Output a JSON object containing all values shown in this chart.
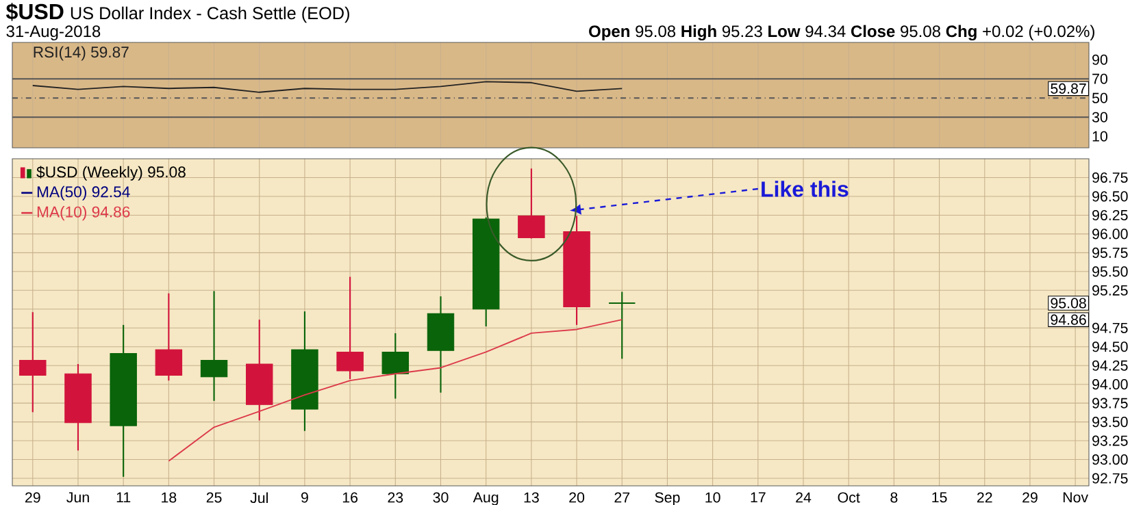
{
  "chart_data": [
    {
      "type": "line",
      "title": "$USD",
      "subtitle": "US Dollar Index - Cash Settle (EOD)",
      "annotations": [
        "31-Aug-2018",
        "**Open** 95.08 **High** 95.23 **Low** 94.34 **Close** 95.08 **Chg** +0.02 (+0.02%)",
        {
          "text": "59.87",
          "y": 59.87
        }
      ],
      "categories": [
        null,
        null,
        null,
        null,
        null,
        null,
        null,
        null,
        null,
        null,
        null,
        null,
        null,
        null,
        null,
        null,
        null,
        null,
        null,
        null,
        null,
        null,
        null,
        null
      ],
      "series": [
        {
          "name": "RSI(14) 59.87",
          "color": "#222222",
          "values": [
            63,
            59,
            62,
            60,
            61,
            56,
            60,
            59,
            59,
            62,
            67,
            66,
            57,
            59.87,
            null,
            null,
            null,
            null,
            null,
            null,
            null,
            null,
            null,
            null
          ]
        }
      ],
      "ylim": [
        -2,
        108
      ],
      "yticks": [
        10,
        30,
        50,
        70,
        90
      ],
      "tick_labels": "y",
      "grid": "x",
      "legend": "top left",
      "ref_lines": [
        {
          "axis": "y",
          "value": 70,
          "color": "#555555",
          "line_style": "solid"
        },
        {
          "axis": "y",
          "value": 50,
          "color": "#555555",
          "line_style": "dashed"
        },
        {
          "axis": "y",
          "value": 30,
          "color": "#555555",
          "line_style": "solid"
        }
      ]
    },
    {
      "type": "candlestick",
      "categories": [
        "29",
        "Jun",
        "11",
        "18",
        "25",
        "Jul",
        "9",
        "16",
        "23",
        "30",
        "Aug",
        "13",
        "20",
        "27",
        "Sep",
        "10",
        "17",
        "24",
        "Oct",
        "8",
        "15",
        "22",
        "29",
        "Nov"
      ],
      "series": [
        {
          "name": "$USD (Weekly) 95.08",
          "type": "candlestick",
          "ohlc": [
            [
              94.32,
              94.96,
              93.63,
              94.12
            ],
            [
              94.14,
              94.27,
              93.12,
              93.49
            ],
            [
              93.45,
              94.79,
              92.77,
              94.41
            ],
            [
              94.46,
              95.21,
              94.05,
              94.12
            ],
            [
              94.1,
              95.24,
              93.78,
              94.32
            ],
            [
              94.27,
              94.86,
              93.52,
              93.73
            ],
            [
              93.67,
              94.97,
              93.38,
              94.46
            ],
            [
              94.43,
              95.43,
              94.07,
              94.18
            ],
            [
              94.14,
              94.68,
              93.81,
              94.43
            ],
            [
              94.45,
              95.17,
              93.89,
              94.94
            ],
            [
              95.0,
              96.22,
              94.77,
              96.2
            ],
            [
              96.24,
              96.87,
              95.94,
              95.95
            ],
            [
              96.03,
              96.24,
              94.79,
              95.03
            ],
            [
              95.08,
              95.23,
              94.34,
              95.08
            ],
            null,
            null,
            null,
            null,
            null,
            null,
            null,
            null,
            null,
            null
          ],
          "colors": [
            "#d2143c",
            "#d2143c",
            "#0a640a",
            "#d2143c",
            "#0a640a",
            "#d2143c",
            "#0a640a",
            "#d2143c",
            "#0a640a",
            "#0a640a",
            "#0a640a",
            "#d2143c",
            "#d2143c",
            "#0a640a",
            null,
            null,
            null,
            null,
            null,
            null,
            null,
            null,
            null,
            null
          ]
        },
        {
          "name": "MA(50) 92.54",
          "type": "line",
          "color": "#00007f",
          "values": [
            null,
            null,
            null,
            null,
            null,
            null,
            null,
            null,
            null,
            null,
            null,
            null,
            null,
            null,
            null,
            null,
            null,
            null,
            null,
            null,
            null,
            null,
            null,
            null
          ]
        },
        {
          "name": "MA(10) 94.86",
          "type": "line",
          "color": "#dc3a4a",
          "values": [
            null,
            null,
            null,
            92.98,
            93.43,
            93.64,
            93.86,
            94.05,
            94.14,
            94.22,
            94.43,
            94.68,
            94.73,
            94.86,
            null,
            null,
            null,
            null,
            null,
            null,
            null,
            null,
            null,
            null
          ]
        }
      ],
      "ylim": [
        92.65,
        97.0
      ],
      "yticks": [
        92.75,
        {
          "value": 93.0,
          "label": "93.00"
        },
        93.25,
        {
          "value": 93.5,
          "label": "93.50"
        },
        93.75,
        {
          "value": 94.0,
          "label": "94.00"
        },
        94.25,
        {
          "value": 94.5,
          "label": "94.50"
        },
        94.75,
        {
          "value": 95.0,
          "label": null
        },
        95.25,
        {
          "value": 95.5,
          "label": "95.50"
        },
        95.75,
        {
          "value": 96.0,
          "label": "96.00"
        },
        96.25,
        {
          "value": 96.5,
          "label": "96.50"
        },
        96.75
      ],
      "grid": true,
      "legend": "top left",
      "annotations": [
        "Like this",
        {
          "text": "95.08",
          "y": 95.08
        },
        {
          "text": "94.86",
          "y": 94.86
        }
      ]
    }
  ]
}
